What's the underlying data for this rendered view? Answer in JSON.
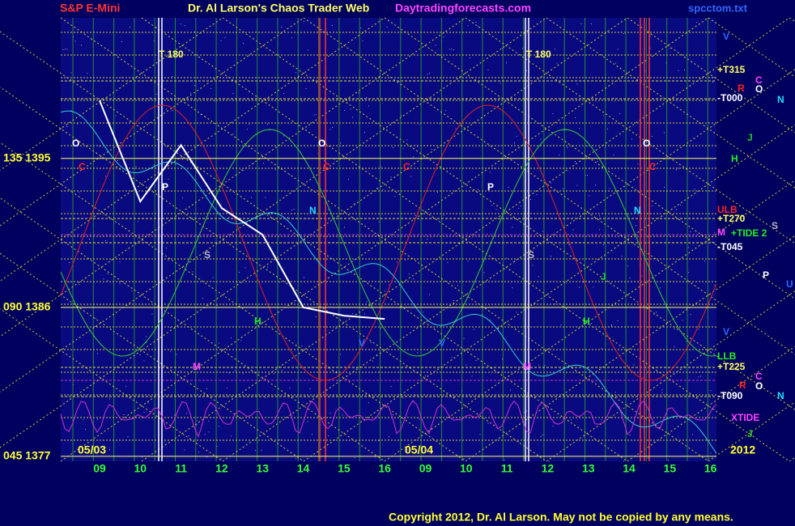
{
  "chart_data": {
    "type": "line",
    "title": "S&P E-Mini",
    "subtitle": "Dr. Al Larson's Chaos Trader Web",
    "site": "Daytradingforecasts.com",
    "file": "spcctom.txt",
    "copyright": "Copyright 2012, Dr. Al Larson. May not be copied by any means.",
    "dates": [
      "05/03",
      "05/04",
      "2012"
    ],
    "categories": [
      "09",
      "10",
      "11",
      "12",
      "13",
      "14",
      "15",
      "16",
      "09",
      "10",
      "11",
      "12",
      "13",
      "14",
      "15",
      "16"
    ],
    "series": [
      {
        "name": "S&P E-Mini",
        "color": "#ffffff",
        "values": [
          1398.5,
          1392.4,
          1395.8,
          1392,
          1390.4,
          1386,
          1385.5,
          1385.3,
          null,
          null,
          null,
          null,
          null,
          null,
          null,
          null
        ]
      }
    ],
    "ylim": [
      1376.7,
      1403.5
    ],
    "yticks": [
      {
        "value": 1395,
        "label": "135 1395"
      },
      {
        "value": 1386,
        "label": "090 1386"
      },
      {
        "value": 1377,
        "label": "045 1377"
      }
    ],
    "grid": true,
    "annotations": [
      {
        "text": "T  180",
        "color": "#ffff66"
      },
      {
        "text": "T  180",
        "color": "#ffff66"
      },
      {
        "text": "V",
        "color": "#3366ff"
      },
      {
        "text": "+T315",
        "color": "#ffff66"
      },
      {
        "text": "R",
        "color": "#ff2222"
      },
      {
        "text": "C",
        "color": "#ff44ff"
      },
      {
        "text": "O",
        "color": "#ffffff"
      },
      {
        "text": "N",
        "color": "#22ddff"
      },
      {
        "text": "-T000",
        "color": "#ffffff"
      },
      {
        "text": "J",
        "color": "#22cc22"
      },
      {
        "text": "H",
        "color": "#22ee22"
      },
      {
        "text": "ULB",
        "color": "#ff2222"
      },
      {
        "text": "+T270",
        "color": "#ffff66"
      },
      {
        "text": "M",
        "color": "#ff44ff"
      },
      {
        "text": "+TIDE 2",
        "color": "#22ee22"
      },
      {
        "text": "S",
        "color": "#bbbbbb"
      },
      {
        "text": "-T045",
        "color": "#ffffff"
      },
      {
        "text": "P",
        "color": "#ffffff"
      },
      {
        "text": "U",
        "color": "#3366ff"
      },
      {
        "text": "V",
        "color": "#3366ff"
      },
      {
        "text": "LLB",
        "color": "#22ee22"
      },
      {
        "text": "+T225",
        "color": "#ffff66"
      },
      {
        "text": "C",
        "color": "#ff44ff"
      },
      {
        "text": "R",
        "color": "#ff2222"
      },
      {
        "text": "O",
        "color": "#ffffff"
      },
      {
        "text": "N",
        "color": "#22ddff"
      },
      {
        "text": "-T090",
        "color": "#ffffff"
      },
      {
        "text": "XTIDE",
        "color": "#ff44ff"
      },
      {
        "text": "J",
        "color": "#22cc22"
      },
      {
        "text": "O",
        "color": "#ffffff"
      },
      {
        "text": "C",
        "color": "#ff2222"
      },
      {
        "text": "P",
        "color": "#ffffff"
      },
      {
        "text": "S",
        "color": "#bbbbbb"
      },
      {
        "text": "N",
        "color": "#22ddff"
      },
      {
        "text": "H",
        "color": "#22ee22"
      },
      {
        "text": "M",
        "color": "#ff44ff"
      },
      {
        "text": "O",
        "color": "#ffffff"
      },
      {
        "text": "C",
        "color": "#ff2222"
      },
      {
        "text": "C",
        "color": "#ff2222"
      },
      {
        "text": "P",
        "color": "#ffffff"
      },
      {
        "text": "S",
        "color": "#bbbbbb"
      },
      {
        "text": "N",
        "color": "#22ddff"
      },
      {
        "text": "H",
        "color": "#22ee22"
      },
      {
        "text": "M",
        "color": "#ff44ff"
      },
      {
        "text": "V",
        "color": "#3366ff"
      },
      {
        "text": "V",
        "color": "#3366ff"
      },
      {
        "text": "O",
        "color": "#ffffff"
      },
      {
        "text": "C",
        "color": "#ff2222"
      },
      {
        "text": "J",
        "color": "#22cc22"
      }
    ]
  }
}
